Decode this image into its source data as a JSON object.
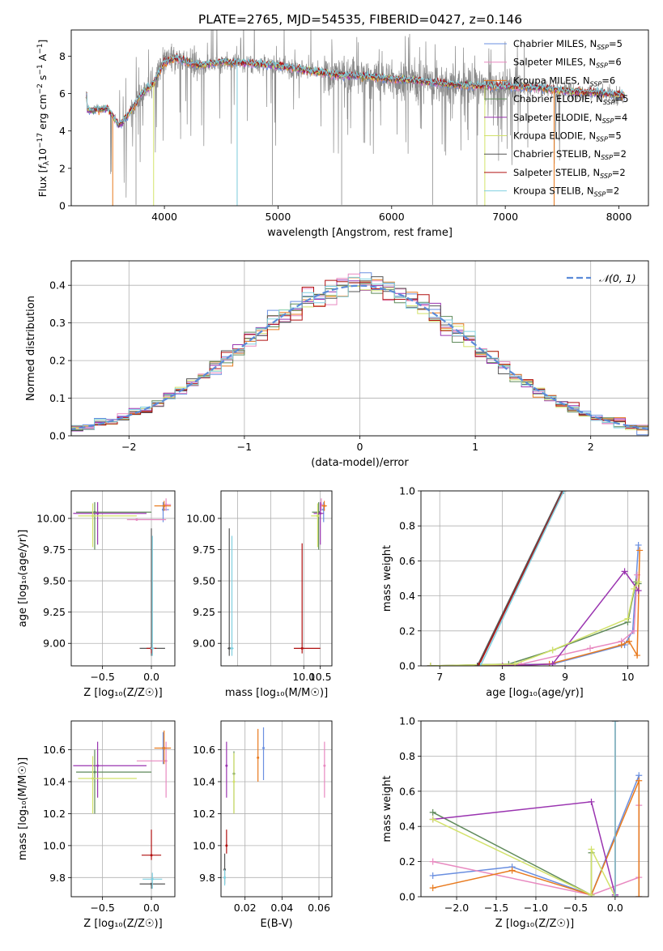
{
  "figure_title": "PLATE=2765, MJD=54535, FIBERID=0427, z=0.146",
  "colors": {
    "Chabrier MILES": "#6a8fe0",
    "Salpeter MILES": "#e889c0",
    "Kroupa MILES": "#e87a1e",
    "Chabrier ELODIE": "#5f8a5a",
    "Salpeter ELODIE": "#9a34b0",
    "Kroupa ELODIE": "#d2e26a",
    "Chabrier STELIB": "#555555",
    "Salpeter STELIB": "#b01010",
    "Kroupa STELIB": "#80d0e0",
    "data": "#888888",
    "normal": "#5b8bd8"
  },
  "chart_data": [
    {
      "id": "spectrum",
      "type": "line",
      "xlabel": "wavelength [Angstrom, rest frame]",
      "ylabel": "Flux [f_λ 10^-17 erg cm^-2 s^-1 A^-1]",
      "xlim": [
        3180,
        8260
      ],
      "ylim": [
        0,
        9.4
      ],
      "xticks": [
        4000,
        5000,
        6000,
        7000,
        8000
      ],
      "yticks": [
        0,
        2,
        4,
        6,
        8
      ],
      "grid": false,
      "legend_position": "right",
      "legend": [
        {
          "prefix": "Chabrier MILES, N",
          "sub": "SSP",
          "suffix": "=5"
        },
        {
          "prefix": "Salpeter MILES, N",
          "sub": "SSP",
          "suffix": "=6"
        },
        {
          "prefix": "Kroupa MILES, N",
          "sub": "SSP",
          "suffix": "=6"
        },
        {
          "prefix": "Chabrier ELODIE, N",
          "sub": "SSP",
          "suffix": "=5"
        },
        {
          "prefix": "Salpeter ELODIE, N",
          "sub": "SSP",
          "suffix": "=4"
        },
        {
          "prefix": "Kroupa ELODIE, N",
          "sub": "SSP",
          "suffix": "=5"
        },
        {
          "prefix": "Chabrier STELIB, N",
          "sub": "SSP",
          "suffix": "=2"
        },
        {
          "prefix": "Salpeter STELIB, N",
          "sub": "SSP",
          "suffix": "=2"
        },
        {
          "prefix": "Kroupa STELIB, N",
          "sub": "SSP",
          "suffix": "=2"
        }
      ],
      "continuum": [
        [
          3320,
          5.1
        ],
        [
          3500,
          5.2
        ],
        [
          3600,
          4.3
        ],
        [
          3700,
          5.0
        ],
        [
          3800,
          6.0
        ],
        [
          3900,
          6.5
        ],
        [
          4000,
          7.7
        ],
        [
          4100,
          7.9
        ],
        [
          4300,
          7.5
        ],
        [
          4500,
          7.7
        ],
        [
          4800,
          7.6
        ],
        [
          5000,
          7.5
        ],
        [
          5200,
          7.3
        ],
        [
          5500,
          7.0
        ],
        [
          5800,
          6.9
        ],
        [
          6000,
          6.8
        ],
        [
          6200,
          6.7
        ],
        [
          6500,
          6.5
        ],
        [
          6800,
          6.4
        ],
        [
          7000,
          6.4
        ],
        [
          7300,
          6.3
        ],
        [
          7600,
          6.1
        ],
        [
          7900,
          6.0
        ],
        [
          8040,
          5.9
        ]
      ],
      "model_window": [
        3310,
        8050
      ],
      "dropouts": [
        {
          "series": "Kroupa MILES",
          "x": 3545
        },
        {
          "series": "Kroupa STELIB",
          "x": 4640
        },
        {
          "series": "Kroupa ELODIE",
          "x": 3905
        },
        {
          "series": "Kroupa ELODIE",
          "x": 6820
        },
        {
          "series": "Kroupa MILES",
          "x": 7430
        }
      ]
    },
    {
      "id": "residual-histogram",
      "type": "line",
      "xlabel": "(data-model)/error",
      "ylabel": "Normed distribution",
      "xlim": [
        -2.5,
        2.5
      ],
      "ylim": [
        0,
        0.465
      ],
      "xticks": [
        -2,
        -1,
        0,
        1,
        2
      ],
      "yticks": [
        0.0,
        0.1,
        0.2,
        0.3,
        0.4
      ],
      "grid": true,
      "legend_position": "top-right",
      "legend": [
        "𝒩(0, 1)"
      ],
      "bin_width": 0.1
    },
    {
      "id": "age-vs-Z",
      "type": "scatter",
      "xlabel": "Z [log₁₀(Z/Z☉)]",
      "ylabel": "age  [log₁₀(age/yr)]",
      "xlim": [
        -0.82,
        0.24
      ],
      "ylim": [
        8.82,
        10.22
      ],
      "xticks": [
        -0.5,
        0.0
      ],
      "yticks": [
        9.0,
        9.25,
        9.5,
        9.75,
        10.0
      ],
      "grid": true,
      "points": [
        {
          "series": "Chabrier MILES",
          "x": 0.12,
          "y": 10.07,
          "xerr": [
            0.0,
            0.06
          ],
          "yerr": [
            0.1,
            0.06
          ]
        },
        {
          "series": "Salpeter MILES",
          "x": 0.15,
          "y": 10.11,
          "xerr": [
            0.0,
            0.05
          ],
          "yerr": [
            0.05,
            0.05
          ]
        },
        {
          "series": "Kroupa MILES",
          "x": 0.13,
          "y": 10.1,
          "xerr": [
            0.1,
            0.07
          ],
          "yerr": [
            0.04,
            0.04
          ]
        },
        {
          "series": "Chabrier ELODIE",
          "x": -0.58,
          "y": 10.05,
          "xerr": [
            0.19,
            0.58
          ],
          "yerr": [
            0.3,
            0.08
          ]
        },
        {
          "series": "Salpeter ELODIE",
          "x": -0.55,
          "y": 10.04,
          "xerr": [
            0.25,
            0.5
          ],
          "yerr": [
            0.25,
            0.09
          ]
        },
        {
          "series": "Kroupa ELODIE",
          "x": -0.6,
          "y": 10.02,
          "xerr": [
            0.15,
            0.45
          ],
          "yerr": [
            0.25,
            0.1
          ]
        },
        {
          "series": "Chabrier STELIB",
          "x": 0.0,
          "y": 8.96,
          "xerr": [
            0.12,
            0.14
          ],
          "yerr": [
            0.06,
            0.96
          ]
        },
        {
          "series": "Salpeter STELIB",
          "x": 0.0,
          "y": 8.96,
          "xerr": [
            0.05,
            0.05
          ],
          "yerr": [
            0.04,
            0.0
          ]
        },
        {
          "series": "Kroupa STELIB",
          "x": 0.01,
          "y": 8.96,
          "xerr": [
            0.02,
            0.02
          ],
          "yerr": [
            0.06,
            0.9
          ]
        },
        {
          "series": "Salpeter MILES",
          "x": -0.15,
          "y": 9.99,
          "xerr": [
            0.1,
            0.3
          ],
          "yerr": [
            0,
            0
          ]
        }
      ]
    },
    {
      "id": "age-vs-mass",
      "type": "scatter",
      "xlabel": "mass [log₁₀(M/M☉)]",
      "ylabel": "",
      "xlim": [
        7.5,
        10.85
      ],
      "ylim": [
        8.82,
        10.22
      ],
      "xticks": [
        8.0,
        9.0,
        10.0,
        10.5
      ],
      "xticklabels": [
        "",
        "",
        "10.0",
        "10.5"
      ],
      "xtickvalues": [
        10.0,
        10.5
      ],
      "yticks": [
        9.0,
        9.25,
        9.5,
        9.75,
        10.0
      ],
      "grid": true,
      "points": [
        {
          "series": "Chabrier MILES",
          "x": 10.6,
          "y": 10.07,
          "xerr": [
            0.1,
            0.03
          ],
          "yerr": [
            0.1,
            0.06
          ]
        },
        {
          "series": "Salpeter MILES",
          "x": 10.53,
          "y": 10.11,
          "xerr": [
            0.03,
            0.05
          ],
          "yerr": [
            0.05,
            0.05
          ]
        },
        {
          "series": "Kroupa MILES",
          "x": 10.62,
          "y": 10.1,
          "xerr": [
            0.08,
            0.08
          ],
          "yerr": [
            0.04,
            0.04
          ]
        },
        {
          "series": "Chabrier ELODIE",
          "x": 10.45,
          "y": 10.05,
          "xerr": [
            0.2,
            0.05
          ],
          "yerr": [
            0.3,
            0.08
          ]
        },
        {
          "series": "Salpeter ELODIE",
          "x": 10.5,
          "y": 10.04,
          "xerr": [
            0.2,
            0.1
          ],
          "yerr": [
            0.25,
            0.09
          ]
        },
        {
          "series": "Kroupa ELODIE",
          "x": 10.42,
          "y": 10.02,
          "xerr": [
            0.2,
            0.05
          ],
          "yerr": [
            0.25,
            0.1
          ]
        },
        {
          "series": "Chabrier STELIB",
          "x": 7.75,
          "y": 8.96,
          "xerr": [
            0.05,
            0.05
          ],
          "yerr": [
            0.06,
            0.96
          ]
        },
        {
          "series": "Salpeter STELIB",
          "x": 9.95,
          "y": 8.96,
          "xerr": [
            0.25,
            0.55
          ],
          "yerr": [
            0.04,
            0.84
          ]
        },
        {
          "series": "Kroupa STELIB",
          "x": 7.83,
          "y": 8.96,
          "xerr": [
            0.05,
            0.05
          ],
          "yerr": [
            0.06,
            0.9
          ]
        }
      ]
    },
    {
      "id": "massweight-vs-age",
      "type": "line",
      "xlabel": "age  [log₁₀(age/yr)]",
      "ylabel": "mass weight",
      "xlim": [
        6.7,
        10.33
      ],
      "ylim": [
        0,
        1.0
      ],
      "xticks": [
        7,
        8,
        9,
        10
      ],
      "yticks": [
        0.0,
        0.2,
        0.4,
        0.6,
        0.8,
        1.0
      ],
      "grid": true,
      "series": [
        {
          "name": "Chabrier MILES",
          "x": [
            6.85,
            8.8,
            9.95,
            10.08,
            10.17
          ],
          "y": [
            0.0,
            0.01,
            0.12,
            0.2,
            0.69
          ]
        },
        {
          "name": "Salpeter MILES",
          "x": [
            6.85,
            8.3,
            9.4,
            9.9,
            10.1,
            10.15
          ],
          "y": [
            0.0,
            0.01,
            0.1,
            0.14,
            0.2,
            0.52
          ]
        },
        {
          "name": "Kroupa MILES",
          "x": [
            6.85,
            8.0,
            8.75,
            9.9,
            10.02,
            10.15,
            10.19
          ],
          "y": [
            0.0,
            0.0,
            0.01,
            0.12,
            0.14,
            0.06,
            0.66
          ]
        },
        {
          "name": "Chabrier ELODIE",
          "x": [
            6.85,
            8.1,
            8.8,
            10.0,
            10.13,
            10.17
          ],
          "y": [
            0.0,
            0.01,
            0.09,
            0.25,
            0.48,
            0.47
          ]
        },
        {
          "name": "Salpeter ELODIE",
          "x": [
            8.0,
            8.8,
            9.95,
            10.17
          ],
          "y": [
            0.0,
            0.01,
            0.54,
            0.43
          ]
        },
        {
          "name": "Kroupa ELODIE",
          "x": [
            6.85,
            8.2,
            8.8,
            10.0,
            10.1,
            10.17
          ],
          "y": [
            0.0,
            0.01,
            0.09,
            0.27,
            0.44,
            0.48
          ]
        },
        {
          "name": "Chabrier STELIB",
          "x": [
            7.6,
            8.95
          ],
          "y": [
            0.0,
            1.0
          ]
        },
        {
          "name": "Salpeter STELIB",
          "x": [
            7.62,
            8.97
          ],
          "y": [
            0.0,
            1.0
          ]
        },
        {
          "name": "Kroupa STELIB",
          "x": [
            7.65,
            8.98
          ],
          "y": [
            0.0,
            1.0
          ]
        }
      ]
    },
    {
      "id": "mass-vs-Z",
      "type": "scatter",
      "xlabel": "Z [log₁₀(Z/Z☉)]",
      "ylabel": "mass [log₁₀(M/M☉)]",
      "xlim": [
        -0.82,
        0.24
      ],
      "ylim": [
        9.68,
        10.78
      ],
      "xticks": [
        -0.5,
        0.0
      ],
      "yticks": [
        9.8,
        10.0,
        10.2,
        10.4,
        10.6
      ],
      "grid": true,
      "points": [
        {
          "series": "Chabrier MILES",
          "x": 0.12,
          "y": 10.61,
          "xerr": [
            0.0,
            0.06
          ],
          "yerr": [
            0.1,
            0.1
          ]
        },
        {
          "series": "Salpeter MILES",
          "x": 0.15,
          "y": 10.53,
          "xerr": [
            0.3,
            0.0
          ],
          "yerr": [
            0.23,
            0.12
          ]
        },
        {
          "series": "Kroupa MILES",
          "x": 0.13,
          "y": 10.61,
          "xerr": [
            0.1,
            0.07
          ],
          "yerr": [
            0.1,
            0.11
          ]
        },
        {
          "series": "Chabrier ELODIE",
          "x": -0.58,
          "y": 10.46,
          "xerr": [
            0.19,
            0.58
          ],
          "yerr": [
            0.26,
            0.14
          ]
        },
        {
          "series": "Salpeter ELODIE",
          "x": -0.55,
          "y": 10.5,
          "xerr": [
            0.25,
            0.5
          ],
          "yerr": [
            0.2,
            0.15
          ]
        },
        {
          "series": "Kroupa ELODIE",
          "x": -0.6,
          "y": 10.42,
          "xerr": [
            0.15,
            0.45
          ],
          "yerr": [
            0.22,
            0.14
          ]
        },
        {
          "series": "Chabrier STELIB",
          "x": 0.0,
          "y": 9.76,
          "xerr": [
            0.12,
            0.14
          ],
          "yerr": [
            0.03,
            0.0
          ]
        },
        {
          "series": "Salpeter STELIB",
          "x": 0.0,
          "y": 9.94,
          "xerr": [
            0.1,
            0.1
          ],
          "yerr": [
            0.03,
            0.16
          ]
        },
        {
          "series": "Kroupa STELIB",
          "x": 0.01,
          "y": 9.79,
          "xerr": [
            0.1,
            0.1
          ],
          "yerr": [
            0.06,
            0.04
          ]
        }
      ]
    },
    {
      "id": "mass-vs-EBV",
      "type": "scatter",
      "xlabel": "E(B-V)",
      "ylabel": "",
      "xlim": [
        0.007,
        0.067
      ],
      "ylim": [
        9.68,
        10.78
      ],
      "xticks": [
        0.02,
        0.04,
        0.06
      ],
      "yticks": [
        9.8,
        10.0,
        10.2,
        10.4,
        10.6
      ],
      "grid": true,
      "points": [
        {
          "series": "Chabrier MILES",
          "x": 0.03,
          "y": 10.61,
          "yerr": [
            0.2,
            0.13
          ]
        },
        {
          "series": "Salpeter MILES",
          "x": 0.063,
          "y": 10.5,
          "yerr": [
            0.2,
            0.15
          ]
        },
        {
          "series": "Kroupa MILES",
          "x": 0.027,
          "y": 10.55,
          "yerr": [
            0.15,
            0.18
          ]
        },
        {
          "series": "Chabrier ELODIE",
          "x": 0.014,
          "y": 10.45,
          "yerr": [
            0.25,
            0.14
          ]
        },
        {
          "series": "Salpeter ELODIE",
          "x": 0.01,
          "y": 10.5,
          "yerr": [
            0.2,
            0.15
          ]
        },
        {
          "series": "Kroupa ELODIE",
          "x": 0.014,
          "y": 10.4,
          "yerr": [
            0.2,
            0.18
          ]
        },
        {
          "series": "Chabrier STELIB",
          "x": 0.009,
          "y": 9.85,
          "yerr": [
            0.09,
            0.1
          ]
        },
        {
          "series": "Salpeter STELIB",
          "x": 0.01,
          "y": 10.0,
          "yerr": [
            0.05,
            0.1
          ]
        },
        {
          "series": "Kroupa STELIB",
          "x": 0.009,
          "y": 9.8,
          "yerr": [
            0.05,
            0.05
          ]
        }
      ]
    },
    {
      "id": "massweight-vs-Z",
      "type": "line",
      "xlabel": "Z [log₁₀(Z/Z☉)]",
      "ylabel": "mass weight",
      "xlim": [
        -2.45,
        0.42
      ],
      "ylim": [
        0,
        1.0
      ],
      "xticks": [
        -2.0,
        -1.5,
        -1.0,
        -0.5,
        0.0
      ],
      "yticks": [
        0.0,
        0.2,
        0.4,
        0.6,
        0.8,
        1.0
      ],
      "grid": true,
      "series": [
        {
          "name": "Chabrier MILES",
          "x": [
            -2.3,
            -1.3,
            -0.3,
            0.3,
            0.3
          ],
          "y": [
            0.12,
            0.17,
            0.01,
            0.69,
            0.0
          ]
        },
        {
          "name": "Salpeter MILES",
          "x": [
            -2.3,
            -0.3,
            0.3,
            0.3
          ],
          "y": [
            0.2,
            0.01,
            0.11,
            0.52
          ]
        },
        {
          "name": "Kroupa MILES",
          "x": [
            -2.3,
            -1.3,
            -0.3,
            0.3,
            0.3
          ],
          "y": [
            0.05,
            0.15,
            0.01,
            0.66,
            0.0
          ]
        },
        {
          "name": "Chabrier ELODIE",
          "x": [
            -2.3,
            -0.3,
            -0.3
          ],
          "y": [
            0.48,
            0.01,
            0.25
          ]
        },
        {
          "name": "Salpeter ELODIE",
          "x": [
            -2.3,
            -0.3,
            0.0,
            0.0
          ],
          "y": [
            0.44,
            0.54,
            0.01,
            0.01
          ]
        },
        {
          "name": "Kroupa ELODIE",
          "x": [
            -2.3,
            -0.3,
            -0.3,
            0.0
          ],
          "y": [
            0.44,
            0.01,
            0.27,
            0.0
          ]
        },
        {
          "name": "Chabrier STELIB",
          "x": [
            0.0,
            0.0
          ],
          "y": [
            0.0,
            1.0
          ]
        },
        {
          "name": "Salpeter STELIB",
          "x": [
            0.0,
            0.0
          ],
          "y": [
            0.0,
            1.0
          ]
        },
        {
          "name": "Kroupa STELIB",
          "x": [
            0.0,
            0.0
          ],
          "y": [
            0.0,
            1.0
          ]
        }
      ]
    }
  ]
}
